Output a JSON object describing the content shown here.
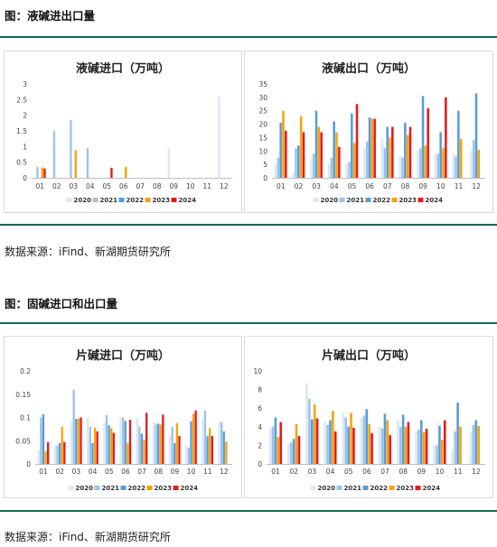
{
  "section1": {
    "title": "图：液碱进出口量",
    "source": "数据来源：iFind、新湖期货研究所"
  },
  "section2": {
    "title": "图：固碱进口和出口量",
    "source": "数据来源：iFind、新湖期货研究所"
  },
  "colors": {
    "rule": "#0f6b57",
    "2020": "#dbe8f5",
    "2021": "#9dc3e6",
    "2022": "#5b9bd5",
    "2023": "#f4a30c",
    "2024": "#e8191a"
  },
  "chart_data": [
    {
      "id": "liquid-import",
      "type": "bar",
      "title": "液碱进口（万吨）",
      "categories": [
        "01",
        "02",
        "03",
        "04",
        "05",
        "06",
        "07",
        "08",
        "09",
        "10",
        "11",
        "12"
      ],
      "ylim": [
        0,
        3
      ],
      "yticks": [
        "0",
        "0.5",
        "1",
        "1.5",
        "2",
        "2.5",
        "3"
      ],
      "legend": "bottom",
      "series": [
        {
          "name": "2020",
          "values": [
            0,
            0,
            0,
            0,
            0,
            0,
            0,
            0,
            0.95,
            0,
            0,
            2.6
          ]
        },
        {
          "name": "2021",
          "values": [
            0.35,
            1.5,
            1.85,
            0.95,
            0,
            0,
            0,
            0,
            0,
            0,
            0,
            0
          ]
        },
        {
          "name": "2022",
          "values": [
            0,
            0,
            0,
            0,
            0,
            0,
            0,
            0,
            0,
            0,
            0,
            0
          ]
        },
        {
          "name": "2023",
          "values": [
            0.33,
            0,
            0.88,
            0,
            0,
            0.35,
            0,
            0,
            0,
            0,
            0,
            0
          ]
        },
        {
          "name": "2024",
          "values": [
            0.3,
            0,
            0,
            0,
            0.32,
            0,
            0,
            0,
            0,
            0,
            0,
            0
          ]
        }
      ]
    },
    {
      "id": "liquid-export",
      "type": "bar",
      "title": "液碱出口（万吨）",
      "categories": [
        "01",
        "02",
        "03",
        "04",
        "05",
        "06",
        "07",
        "08",
        "09",
        "10",
        "11",
        "12"
      ],
      "ylim": [
        0,
        35
      ],
      "yticks": [
        "0",
        "5",
        "10",
        "15",
        "20",
        "25",
        "30",
        "35"
      ],
      "legend": "bottom",
      "series": [
        {
          "name": "2020",
          "values": [
            5,
            2,
            7,
            5,
            5,
            11,
            15,
            8,
            10,
            9,
            9,
            10
          ]
        },
        {
          "name": "2021",
          "values": [
            7.5,
            11,
            9,
            7.5,
            6,
            13.5,
            11,
            7.5,
            11,
            9,
            8,
            14
          ]
        },
        {
          "name": "2022",
          "values": [
            20.5,
            12,
            25,
            21,
            24,
            22.5,
            19,
            20.5,
            30.5,
            17,
            25,
            31.5
          ]
        },
        {
          "name": "2023",
          "values": [
            25,
            23,
            19,
            17,
            13,
            22,
            15,
            16,
            12,
            11,
            14.5,
            10.5
          ]
        },
        {
          "name": "2024",
          "values": [
            17.5,
            17,
            17,
            11.5,
            27.5,
            22,
            19,
            19,
            26,
            30,
            0,
            0
          ]
        }
      ]
    },
    {
      "id": "solid-import",
      "type": "bar",
      "title": "片碱进口（万吨）",
      "categories": [
        "01",
        "02",
        "03",
        "04",
        "05",
        "06",
        "07",
        "08",
        "09",
        "10",
        "11",
        "12"
      ],
      "ylim": [
        0,
        0.2
      ],
      "yticks": [
        "0",
        "0.05",
        "0.1",
        "0.15",
        "0.2"
      ],
      "legend": "bottom",
      "series": [
        {
          "name": "2020",
          "values": [
            0.03,
            0.04,
            0.09,
            0.1,
            0.09,
            0.1,
            0.1,
            0.09,
            0.06,
            0.04,
            0.1,
            0.09
          ]
        },
        {
          "name": "2021",
          "values": [
            0.1,
            0.04,
            0.16,
            0.08,
            0.105,
            0.1,
            0.08,
            0.085,
            0.08,
            0.035,
            0.115,
            0.09
          ]
        },
        {
          "name": "2022",
          "values": [
            0.107,
            0.045,
            0.097,
            0.045,
            0.083,
            0.092,
            0.065,
            0.087,
            0.045,
            0.092,
            0.06,
            0.07
          ]
        },
        {
          "name": "2023",
          "values": [
            0.027,
            0.08,
            0.097,
            0.078,
            0.077,
            0.045,
            0.052,
            0.085,
            0.088,
            0.108,
            0.077,
            0.048
          ]
        },
        {
          "name": "2024",
          "values": [
            0.047,
            0.047,
            0.1,
            0.07,
            0.067,
            0.095,
            0.11,
            0.106,
            0.06,
            0.115,
            0.06,
            0
          ]
        }
      ]
    },
    {
      "id": "solid-export",
      "type": "bar",
      "title": "片碱出口（万吨）",
      "categories": [
        "01",
        "02",
        "03",
        "04",
        "05",
        "06",
        "07",
        "08",
        "09",
        "10",
        "11",
        "12"
      ],
      "ylim": [
        0,
        10
      ],
      "yticks": [
        "0",
        "2",
        "4",
        "6",
        "8",
        "10"
      ],
      "legend": "bottom",
      "series": [
        {
          "name": "2020",
          "values": [
            3.8,
            2.2,
            8.7,
            4.5,
            5.5,
            5.0,
            4.0,
            4.8,
            3.5,
            2.0,
            1.5,
            3.5
          ]
        },
        {
          "name": "2021",
          "values": [
            4.0,
            2.3,
            7.0,
            4.2,
            5.0,
            5.2,
            3.8,
            4.0,
            3.7,
            2.0,
            3.5,
            4.2
          ]
        },
        {
          "name": "2022",
          "values": [
            5.0,
            2.7,
            4.8,
            4.7,
            4.0,
            5.9,
            5.4,
            5.3,
            4.7,
            4.1,
            6.6,
            4.7
          ]
        },
        {
          "name": "2023",
          "values": [
            2.9,
            4.3,
            6.4,
            5.7,
            5.5,
            4.3,
            4.7,
            4.0,
            3.4,
            2.6,
            4.0,
            4.1
          ]
        },
        {
          "name": "2024",
          "values": [
            4.5,
            3.0,
            4.9,
            3.5,
            3.9,
            3.3,
            3.1,
            4.5,
            3.8,
            4.7,
            0,
            0
          ]
        }
      ]
    }
  ]
}
